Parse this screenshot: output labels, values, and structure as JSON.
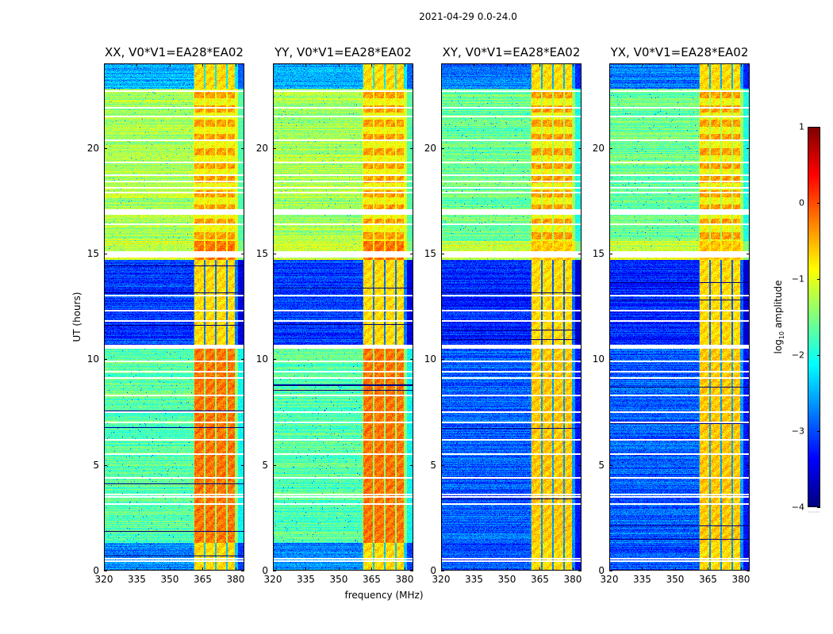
{
  "chart_data": {
    "type": "heatmap",
    "title": "2021-04-29 0.0-24.0",
    "xlabel": "frequency (MHz)",
    "ylabel": "UT (hours)",
    "xlim": [
      320,
      384
    ],
    "ylim": [
      0,
      24
    ],
    "xticks": [
      320,
      335,
      350,
      365,
      380
    ],
    "xtick_labels": [
      "320",
      "335",
      "350",
      "365",
      "380"
    ],
    "yticks": [
      0,
      5,
      10,
      15,
      20
    ],
    "ytick_labels": [
      "0",
      "5",
      "10",
      "15",
      "20"
    ],
    "grid": false,
    "panels": [
      {
        "title": "XX, V0*V1=EA28*EA02",
        "polarization": "XX",
        "baseline": "EA28*EA02",
        "cross_pol": false
      },
      {
        "title": "YY, V0*V1=EA28*EA02",
        "polarization": "YY",
        "baseline": "EA28*EA02",
        "cross_pol": false
      },
      {
        "title": "XY, V0*V1=EA28*EA02",
        "polarization": "XY",
        "baseline": "EA28*EA02",
        "cross_pol": true
      },
      {
        "title": "YX, V0*V1=EA28*EA02",
        "polarization": "YX",
        "baseline": "EA28*EA02",
        "cross_pol": true
      }
    ],
    "colorbar": {
      "label": "log10 amplitude",
      "label_main": "log",
      "label_sub": "10",
      "label_rest": " amplitude",
      "colormap": "jet",
      "vmin": -4,
      "vmax": 1,
      "ticks": [
        1,
        0,
        -1,
        -2,
        -3,
        -4
      ],
      "tick_labels": [
        "1",
        "0",
        "−1",
        "−2",
        "−3",
        "−4"
      ]
    },
    "rfi_band_mhz": [
      361,
      381
    ],
    "rfi_subbands_mhz": [
      [
        361,
        366
      ],
      [
        366,
        371
      ],
      [
        371,
        376
      ],
      [
        376,
        380
      ]
    ],
    "time_segments": [
      {
        "ut_start": 0.0,
        "ut_end": 1.3,
        "level_parallel": -2.7,
        "level_cross": -3.0
      },
      {
        "ut_start": 1.3,
        "ut_end": 10.5,
        "level_parallel": -1.7,
        "level_cross": -2.9
      },
      {
        "ut_start": 10.5,
        "ut_end": 14.7,
        "level_parallel": -3.1,
        "level_cross": -3.2
      },
      {
        "ut_start": 14.7,
        "ut_end": 15.6,
        "level_parallel": -1.1,
        "level_cross": -1.1
      },
      {
        "ut_start": 15.6,
        "ut_end": 22.8,
        "level_parallel": -1.3,
        "level_cross": -1.6
      },
      {
        "ut_start": 22.8,
        "ut_end": 24.0,
        "level_parallel": -2.5,
        "level_cross": -2.8
      }
    ],
    "flagged_ut_hours": [
      0.45,
      0.55,
      3.15,
      3.5,
      3.6,
      4.4,
      5.5,
      6.2,
      7.0,
      7.5,
      8.3,
      9.1,
      9.4,
      9.9,
      10.6,
      10.65,
      11.8,
      12.3,
      13.0,
      14.9,
      15.0,
      16.4,
      17.0,
      17.05,
      17.9,
      18.1,
      18.4,
      18.7,
      19.3,
      20.35,
      21.5,
      21.9,
      22.7
    ]
  }
}
